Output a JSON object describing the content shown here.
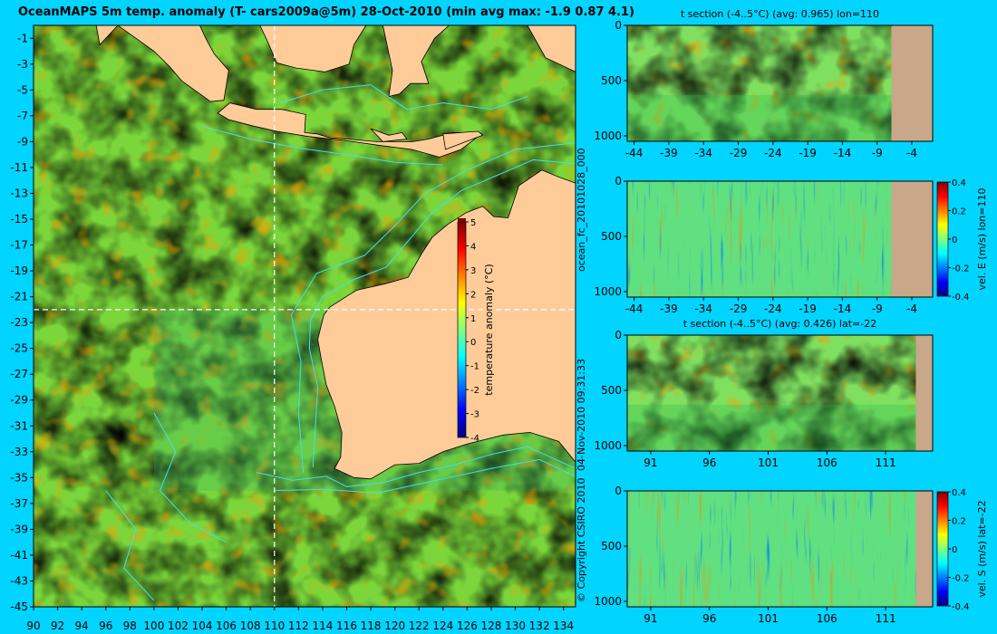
{
  "header": {
    "title": "OceanMAPS 5m temp. anomaly (T- cars2009a@5m) 28-Oct-2010 (min avg max: -1.9 0.87 4.1)"
  },
  "side_text": {
    "run_id": "ocean_fc_20101028_000",
    "generated": "04-Nov-2010 09:31:33",
    "copyright": "© Copyright CSIRO 2010"
  },
  "colors": {
    "page_background": "#00d4ff",
    "land": "#ffcc99",
    "section_land": "#c8a888",
    "bathymetry_contour": "#40e0f0",
    "section_marker": "#ffffff",
    "colormap": [
      "#00007f",
      "#0000ff",
      "#007fff",
      "#00ffff",
      "#7fff7f",
      "#ffff00",
      "#ff7f00",
      "#ff0000",
      "#7f0000"
    ]
  },
  "chart_data": [
    {
      "id": "map",
      "type": "heatmap",
      "title": "OceanMAPS 5m temp. anomaly (T- cars2009a@5m) 28-Oct-2010 (min avg max: -1.9 0.87 4.1)",
      "variable": "5m temperature anomaly",
      "summary": {
        "min": -1.9,
        "avg": 0.87,
        "max": 4.1
      },
      "xlim": [
        90,
        135
      ],
      "ylim": [
        -45,
        0
      ],
      "x_ticks": [
        "90",
        "92",
        "94",
        "96",
        "98",
        "100",
        "102",
        "104",
        "106",
        "108",
        "110",
        "112",
        "114",
        "116",
        "118",
        "120",
        "122",
        "124",
        "126",
        "128",
        "130",
        "132",
        "134"
      ],
      "y_ticks": [
        "-1",
        "-3",
        "-5",
        "-7",
        "-9",
        "-11",
        "-13",
        "-15",
        "-17",
        "-19",
        "-21",
        "-23",
        "-25",
        "-27",
        "-29",
        "-31",
        "-33",
        "-35",
        "-37",
        "-39",
        "-41",
        "-43",
        "-45"
      ],
      "section_lines": {
        "lon": 110,
        "lat": -22
      },
      "colorbar": {
        "label": "temperature anomaly (°C)",
        "range": [
          -4,
          5
        ],
        "ticks": [
          "5",
          "4",
          "3",
          "2",
          "1",
          "0",
          "-1",
          "-2",
          "-3",
          "-4"
        ],
        "placement": "inside, right of centre"
      }
    },
    {
      "id": "t_section_lon110",
      "type": "heatmap",
      "title": "t section (-4..5°C) (avg: 0.965) lon=110",
      "x_ticks": [
        "-44",
        "-39",
        "-34",
        "-29",
        "-24",
        "-19",
        "-14",
        "-9",
        "-4"
      ],
      "y_ticks": [
        "0",
        "500",
        "1000"
      ],
      "xlim": [
        -45,
        -1
      ],
      "ylim": [
        1000,
        0
      ],
      "summary": {
        "avg": 0.965
      }
    },
    {
      "id": "velE_section_lon110",
      "type": "heatmap",
      "title": "",
      "x_ticks": [
        "-44",
        "-39",
        "-34",
        "-29",
        "-24",
        "-19",
        "-14",
        "-9",
        "-4"
      ],
      "y_ticks": [
        "0",
        "500",
        "1000"
      ],
      "xlim": [
        -45,
        -1
      ],
      "ylim": [
        1000,
        0
      ],
      "colorbar": {
        "label": "vel. E (m/s) lon=110",
        "range": [
          -0.4,
          0.4
        ],
        "ticks": [
          "0.4",
          "0.2",
          "0",
          "-0.2",
          "-0.4"
        ]
      }
    },
    {
      "id": "t_section_lat22",
      "type": "heatmap",
      "title": "t section (-4..5°C) (avg: 0.426) lat=-22",
      "x_ticks": [
        "91",
        "96",
        "101",
        "106",
        "111"
      ],
      "y_ticks": [
        "0",
        "500",
        "1000"
      ],
      "xlim": [
        89,
        115
      ],
      "ylim": [
        1000,
        0
      ],
      "summary": {
        "avg": 0.426
      }
    },
    {
      "id": "velS_section_lat22",
      "type": "heatmap",
      "title": "",
      "x_ticks": [
        "91",
        "96",
        "101",
        "106",
        "111"
      ],
      "y_ticks": [
        "0",
        "500",
        "1000"
      ],
      "xlim": [
        89,
        115
      ],
      "ylim": [
        1000,
        0
      ],
      "colorbar": {
        "label": "vel. S (m/s) lat=-22",
        "range": [
          -0.4,
          0.4
        ],
        "ticks": [
          "0.4",
          "0.2",
          "0",
          "-0.2",
          "-0.4"
        ]
      }
    }
  ]
}
